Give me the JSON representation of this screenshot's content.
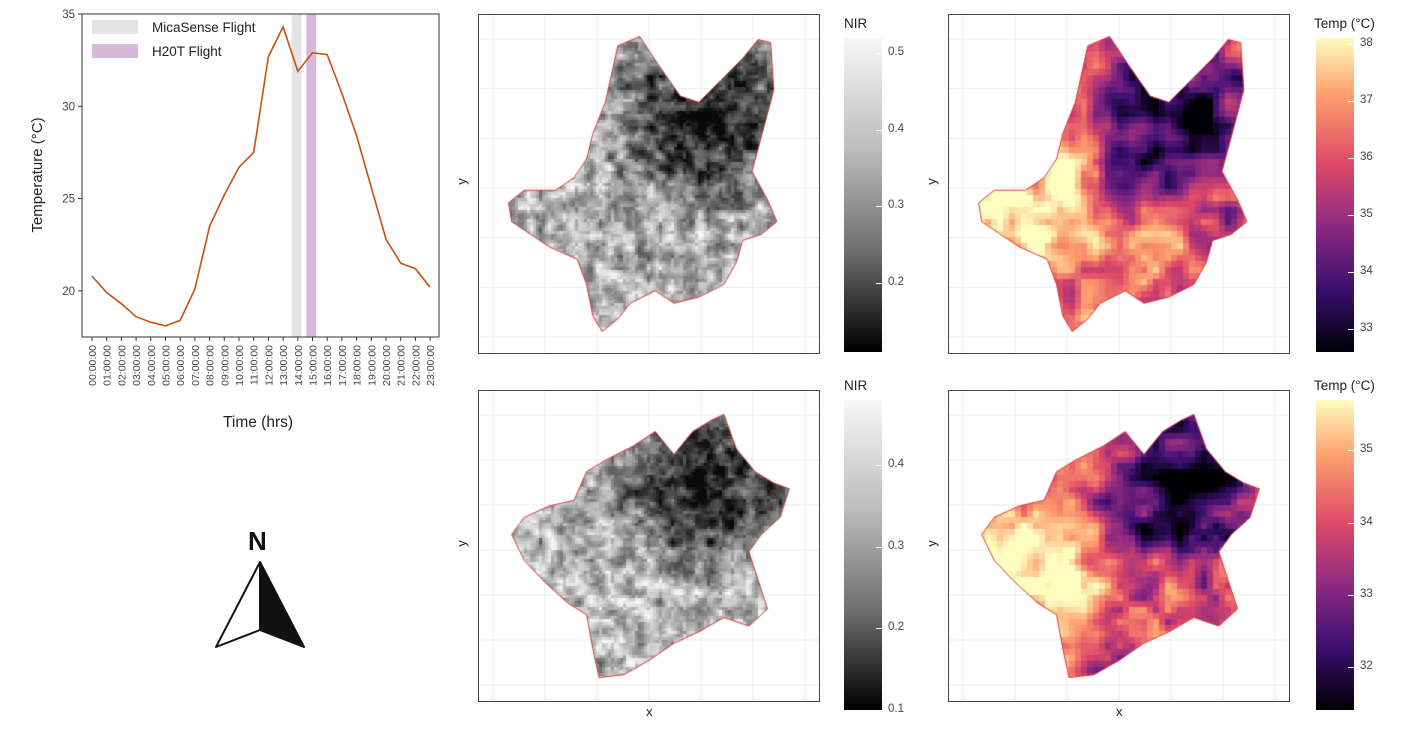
{
  "colors": {
    "line": "#c8510f",
    "micasense_band": "#e3e3e3",
    "h20t_band": "#d7b8db",
    "boundary": "#d32a2a",
    "grid": "#ebebeb"
  },
  "line_chart": {
    "legend": [
      "MicaSense Flight",
      "H20T Flight"
    ],
    "ylabel": "Temperature (°C)",
    "xlabel": "Time (hrs)",
    "yticks": [
      "20",
      "25",
      "30",
      "35"
    ]
  },
  "north_arrow": {
    "label": "N"
  },
  "maps": {
    "nir_top": {
      "legend_title": "NIR",
      "ticks": [
        "0.5",
        "0.4",
        "0.3",
        "0.2"
      ],
      "xlabel": "",
      "ylabel": "y"
    },
    "temp_top": {
      "legend_title": "Temp (°C)",
      "ticks": [
        "38",
        "37",
        "36",
        "35",
        "34",
        "33"
      ],
      "xlabel": "",
      "ylabel": "y"
    },
    "nir_bottom": {
      "legend_title": "NIR",
      "ticks": [
        "0.4",
        "0.3",
        "0.2",
        "0.1"
      ],
      "xlabel": "x",
      "ylabel": "y"
    },
    "temp_bottom": {
      "legend_title": "Temp (°C)",
      "ticks": [
        "35",
        "34",
        "33",
        "32"
      ],
      "xlabel": "x",
      "ylabel": "y"
    }
  },
  "chart_data": [
    {
      "type": "line",
      "title": "",
      "xlabel": "Time (hrs)",
      "ylabel": "Temperature (°C)",
      "x": [
        "00:00:00",
        "01:00:00",
        "02:00:00",
        "03:00:00",
        "04:00:00",
        "05:00:00",
        "06:00:00",
        "07:00:00",
        "08:00:00",
        "09:00:00",
        "10:00:00",
        "11:00:00",
        "12:00:00",
        "13:00:00",
        "14:00:00",
        "15:00:00",
        "16:00:00",
        "17:00:00",
        "18:00:00",
        "19:00:00",
        "20:00:00",
        "21:00:00",
        "22:00:00",
        "23:00:00"
      ],
      "series": [
        {
          "values": [
            20.8,
            19.9,
            19.3,
            18.6,
            18.3,
            18.1,
            18.4,
            20.1,
            23.5,
            25.2,
            26.7,
            27.5,
            32.7,
            34.3,
            31.9,
            32.9,
            32.8,
            30.7,
            28.4,
            25.6,
            22.8,
            21.5,
            21.2,
            20.2
          ]
        }
      ],
      "ylim": [
        17.5,
        35
      ],
      "shaded_bands": [
        {
          "name": "MicaSense Flight",
          "start": "13:35:00",
          "end": "14:15:00"
        },
        {
          "name": "H20T Flight",
          "start": "14:35:00",
          "end": "15:15:00"
        }
      ],
      "legend_position": "top-left",
      "grid": false
    },
    {
      "type": "heatmap",
      "variable": "NIR",
      "legend_title": "NIR",
      "colorbar_range": [
        0.11,
        0.52
      ],
      "colorbar_ticks": [
        0.5,
        0.4,
        0.3,
        0.2
      ],
      "xlabel": "",
      "ylabel": "y",
      "colormap": "greys"
    },
    {
      "type": "heatmap",
      "variable": "Temp (°C)",
      "legend_title": "Temp (°C)",
      "colorbar_range": [
        32.6,
        38.1
      ],
      "colorbar_ticks": [
        38,
        37,
        36,
        35,
        34,
        33
      ],
      "xlabel": "",
      "ylabel": "y",
      "colormap": "magma"
    },
    {
      "type": "heatmap",
      "variable": "NIR",
      "legend_title": "NIR",
      "colorbar_range": [
        0.1,
        0.48
      ],
      "colorbar_ticks": [
        0.4,
        0.3,
        0.2,
        0.1
      ],
      "xlabel": "x",
      "ylabel": "y",
      "colormap": "greys"
    },
    {
      "type": "heatmap",
      "variable": "Temp (°C)",
      "legend_title": "Temp (°C)",
      "colorbar_range": [
        31.4,
        35.7
      ],
      "colorbar_ticks": [
        35,
        34,
        33,
        32
      ],
      "xlabel": "x",
      "ylabel": "y",
      "colormap": "magma"
    }
  ]
}
